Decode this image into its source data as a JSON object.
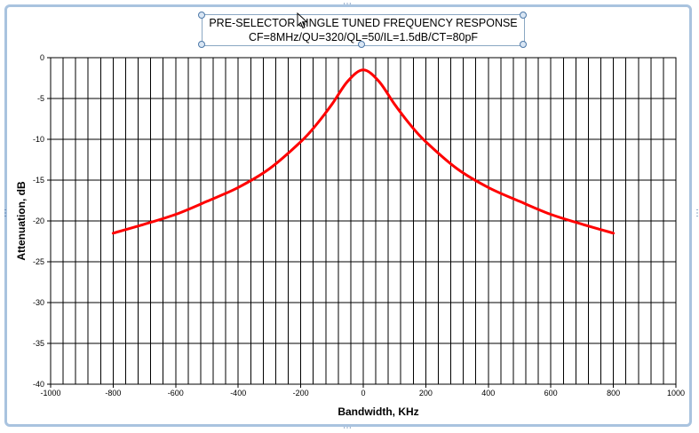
{
  "chart_data": {
    "type": "line",
    "title": "PRE-SELECTOR SINGLE TUNED FREQUENCY RESPONSE",
    "subtitle": "CF=8MHz/QU=320/QL=50/IL=1.5dB/CT=80pF",
    "xlabel": "Bandwidth, KHz",
    "ylabel": "Attenuation, dB",
    "xlim": [
      -1000,
      1000
    ],
    "ylim": [
      -40,
      0
    ],
    "x_ticks": [
      "-1000",
      "-800",
      "-600",
      "-400",
      "-200",
      "0",
      "200",
      "400",
      "600",
      "800",
      "1000"
    ],
    "y_ticks": [
      "0",
      "-5",
      "-10",
      "-15",
      "-20",
      "-25",
      "-30",
      "-35",
      "-40"
    ],
    "grid": true,
    "legend": "none",
    "series": [
      {
        "color": "#ff0000",
        "x": [
          -800,
          -700,
          -600,
          -500,
          -400,
          -300,
          -200,
          -150,
          -100,
          -50,
          0,
          50,
          100,
          150,
          200,
          300,
          400,
          500,
          600,
          700,
          800
        ],
        "y": [
          -21.5,
          -20.4,
          -19.2,
          -17.6,
          -15.9,
          -13.6,
          -10.3,
          -8.2,
          -5.7,
          -2.9,
          -1.5,
          -2.9,
          -5.7,
          -8.2,
          -10.3,
          -13.6,
          -15.9,
          -17.6,
          -19.2,
          -20.4,
          -21.5
        ]
      }
    ]
  }
}
